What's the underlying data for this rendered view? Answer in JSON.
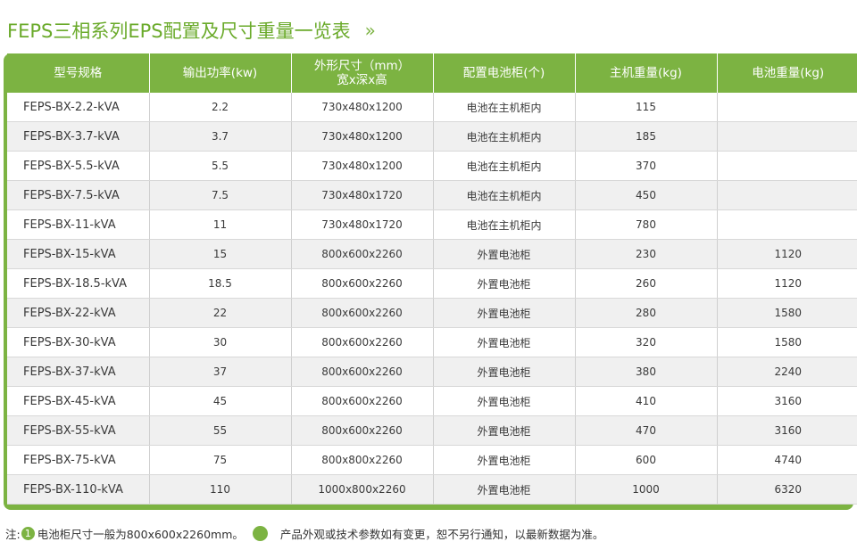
{
  "header": {
    "title": "FEPS三相系列EPS配置及尺寸重量一览表",
    "chevron": "»"
  },
  "table": {
    "columns": [
      {
        "label": "型号规格"
      },
      {
        "label": "输出功率(kw)"
      },
      {
        "label_line1": "外形尺寸（mm）",
        "label_line2": "宽x深x高"
      },
      {
        "label": "配置电池柜(个)"
      },
      {
        "label": "主机重量(kg)"
      },
      {
        "label": "电池重量(kg)"
      }
    ],
    "rows": [
      {
        "model": "FEPS-BX-2.2-kVA",
        "power": "2.2",
        "size": "730x480x1200",
        "battery_cabinet": "电池在主机柜内",
        "host_weight": "115",
        "battery_weight": ""
      },
      {
        "model": "FEPS-BX-3.7-kVA",
        "power": "3.7",
        "size": "730x480x1200",
        "battery_cabinet": "电池在主机柜内",
        "host_weight": "185",
        "battery_weight": ""
      },
      {
        "model": "FEPS-BX-5.5-kVA",
        "power": "5.5",
        "size": "730x480x1200",
        "battery_cabinet": "电池在主机柜内",
        "host_weight": "370",
        "battery_weight": ""
      },
      {
        "model": "FEPS-BX-7.5-kVA",
        "power": "7.5",
        "size": "730x480x1720",
        "battery_cabinet": "电池在主机柜内",
        "host_weight": "450",
        "battery_weight": ""
      },
      {
        "model": "FEPS-BX-11-kVA",
        "power": "11",
        "size": "730x480x1720",
        "battery_cabinet": "电池在主机柜内",
        "host_weight": "780",
        "battery_weight": ""
      },
      {
        "model": "FEPS-BX-15-kVA",
        "power": "15",
        "size": "800x600x2260",
        "battery_cabinet": "外置电池柜",
        "host_weight": "230",
        "battery_weight": "1120"
      },
      {
        "model": "FEPS-BX-18.5-kVA",
        "power": "18.5",
        "size": "800x600x2260",
        "battery_cabinet": "外置电池柜",
        "host_weight": "260",
        "battery_weight": "1120"
      },
      {
        "model": "FEPS-BX-22-kVA",
        "power": "22",
        "size": "800x600x2260",
        "battery_cabinet": "外置电池柜",
        "host_weight": "280",
        "battery_weight": "1580"
      },
      {
        "model": "FEPS-BX-30-kVA",
        "power": "30",
        "size": "800x600x2260",
        "battery_cabinet": "外置电池柜",
        "host_weight": "320",
        "battery_weight": "1580"
      },
      {
        "model": "FEPS-BX-37-kVA",
        "power": "37",
        "size": "800x600x2260",
        "battery_cabinet": "外置电池柜",
        "host_weight": "380",
        "battery_weight": "2240"
      },
      {
        "model": "FEPS-BX-45-kVA",
        "power": "45",
        "size": "800x600x2260",
        "battery_cabinet": "外置电池柜",
        "host_weight": "410",
        "battery_weight": "3160"
      },
      {
        "model": "FEPS-BX-55-kVA",
        "power": "55",
        "size": "800x600x2260",
        "battery_cabinet": "外置电池柜",
        "host_weight": "470",
        "battery_weight": "3160"
      },
      {
        "model": "FEPS-BX-75-kVA",
        "power": "75",
        "size": "800x800x2260",
        "battery_cabinet": "外置电池柜",
        "host_weight": "600",
        "battery_weight": "4740"
      },
      {
        "model": "FEPS-BX-110-kVA",
        "power": "110",
        "size": "1000x800x2260",
        "battery_cabinet": "外置电池柜",
        "host_weight": "1000",
        "battery_weight": "6320"
      }
    ]
  },
  "note": {
    "prefix": "注:",
    "item1_number": "1",
    "item1_text": "电池柜尺寸一般为800x600x2260mm。",
    "item2_text": "产品外观或技术参数如有变更，恕不另行通知，以最新数据为准。"
  },
  "colors": {
    "accent": "#7cb342",
    "title": "#6aaa2a",
    "row_alt": "#f0f0f0"
  }
}
